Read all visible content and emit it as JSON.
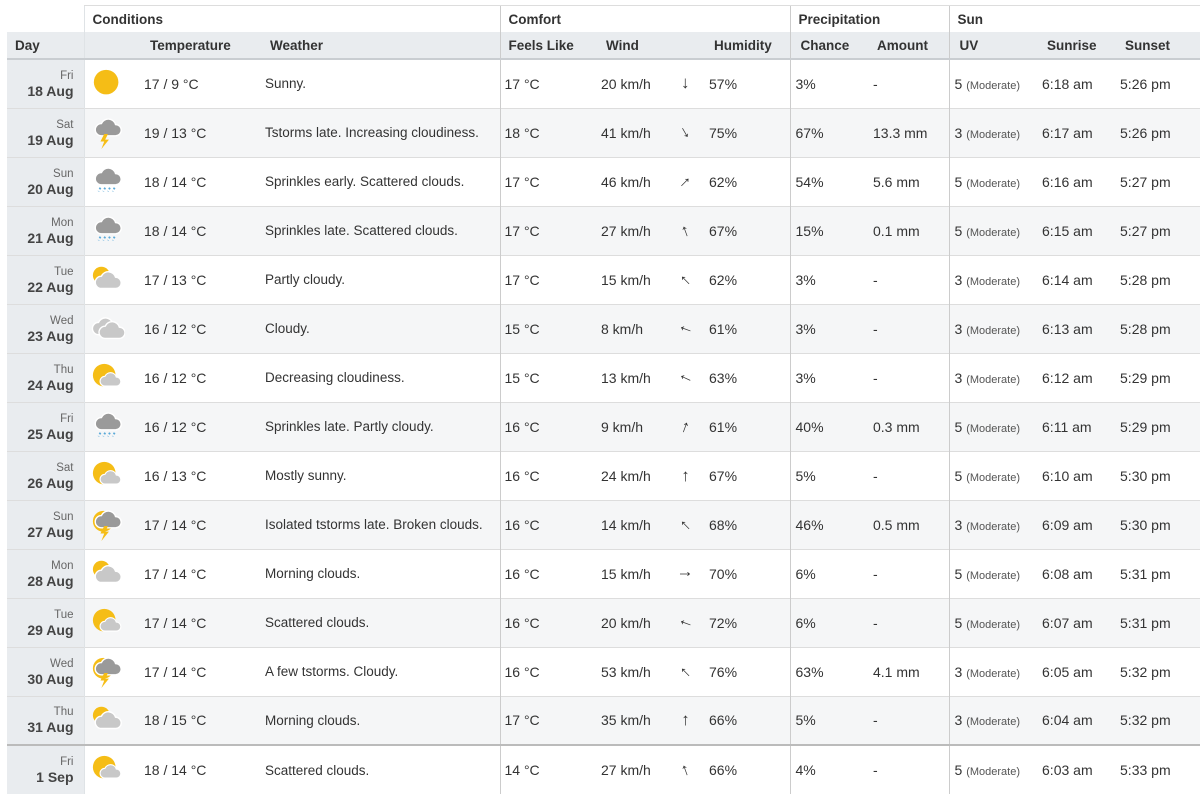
{
  "groups": {
    "conditions": "Conditions",
    "comfort": "Comfort",
    "precipitation": "Precipitation",
    "sun": "Sun"
  },
  "columns": {
    "day": "Day",
    "temperature": "Temperature",
    "weather": "Weather",
    "feels_like": "Feels Like",
    "wind": "Wind",
    "humidity": "Humidity",
    "chance": "Chance",
    "amount": "Amount",
    "uv": "UV",
    "sunrise": "Sunrise",
    "sunset": "Sunset"
  },
  "rows": [
    {
      "dow": "Fri",
      "date": "18 Aug",
      "icon": "sun-icon",
      "temp": "17 / 9 °C",
      "weather": "Sunny.",
      "feels": "17 °C",
      "wind": "20 km/h",
      "dir": 180,
      "humidity": "57%",
      "chance": "3%",
      "amount": "-",
      "uv": "5",
      "uv_label": "(Moderate)",
      "sunrise": "6:18 am",
      "sunset": "5:26 pm"
    },
    {
      "dow": "Sat",
      "date": "19 Aug",
      "icon": "tstorm-cloud-icon",
      "temp": "19 / 13 °C",
      "weather": "Tstorms late. Increasing cloudiness.",
      "feels": "18 °C",
      "wind": "41 km/h",
      "dir": 150,
      "humidity": "75%",
      "chance": "67%",
      "amount": "13.3 mm",
      "uv": "3",
      "uv_label": "(Moderate)",
      "sunrise": "6:17 am",
      "sunset": "5:26 pm"
    },
    {
      "dow": "Sun",
      "date": "20 Aug",
      "icon": "rain-cloud-icon",
      "temp": "18 / 14 °C",
      "weather": "Sprinkles early. Scattered clouds.",
      "feels": "17 °C",
      "wind": "46 km/h",
      "dir": 45,
      "humidity": "62%",
      "chance": "54%",
      "amount": "5.6 mm",
      "uv": "5",
      "uv_label": "(Moderate)",
      "sunrise": "6:16 am",
      "sunset": "5:27 pm"
    },
    {
      "dow": "Mon",
      "date": "21 Aug",
      "icon": "rain-cloud-icon",
      "temp": "18 / 14 °C",
      "weather": "Sprinkles late. Scattered clouds.",
      "feels": "17 °C",
      "wind": "27 km/h",
      "dir": -20,
      "humidity": "67%",
      "chance": "15%",
      "amount": "0.1 mm",
      "uv": "5",
      "uv_label": "(Moderate)",
      "sunrise": "6:15 am",
      "sunset": "5:27 pm"
    },
    {
      "dow": "Tue",
      "date": "22 Aug",
      "icon": "partly-cloudy-icon",
      "temp": "17 / 13 °C",
      "weather": "Partly cloudy.",
      "feels": "17 °C",
      "wind": "15 km/h",
      "dir": -45,
      "humidity": "62%",
      "chance": "3%",
      "amount": "-",
      "uv": "3",
      "uv_label": "(Moderate)",
      "sunrise": "6:14 am",
      "sunset": "5:28 pm"
    },
    {
      "dow": "Wed",
      "date": "23 Aug",
      "icon": "cloudy-icon",
      "temp": "16 / 12 °C",
      "weather": "Cloudy.",
      "feels": "15 °C",
      "wind": "8 km/h",
      "dir": -70,
      "humidity": "61%",
      "chance": "3%",
      "amount": "-",
      "uv": "3",
      "uv_label": "(Moderate)",
      "sunrise": "6:13 am",
      "sunset": "5:28 pm"
    },
    {
      "dow": "Thu",
      "date": "24 Aug",
      "icon": "mostly-sunny-icon",
      "temp": "16 / 12 °C",
      "weather": "Decreasing cloudiness.",
      "feels": "15 °C",
      "wind": "13 km/h",
      "dir": -65,
      "humidity": "63%",
      "chance": "3%",
      "amount": "-",
      "uv": "3",
      "uv_label": "(Moderate)",
      "sunrise": "6:12 am",
      "sunset": "5:29 pm"
    },
    {
      "dow": "Fri",
      "date": "25 Aug",
      "icon": "rain-cloud-icon",
      "temp": "16 / 12 °C",
      "weather": "Sprinkles late. Partly cloudy.",
      "feels": "16 °C",
      "wind": "9 km/h",
      "dir": 20,
      "humidity": "61%",
      "chance": "40%",
      "amount": "0.3 mm",
      "uv": "5",
      "uv_label": "(Moderate)",
      "sunrise": "6:11 am",
      "sunset": "5:29 pm"
    },
    {
      "dow": "Sat",
      "date": "26 Aug",
      "icon": "mostly-sunny-icon",
      "temp": "16 / 13 °C",
      "weather": "Mostly sunny.",
      "feels": "16 °C",
      "wind": "24 km/h",
      "dir": 0,
      "humidity": "67%",
      "chance": "5%",
      "amount": "-",
      "uv": "5",
      "uv_label": "(Moderate)",
      "sunrise": "6:10 am",
      "sunset": "5:30 pm"
    },
    {
      "dow": "Sun",
      "date": "27 Aug",
      "icon": "tstorm-sun-icon",
      "temp": "17 / 14 °C",
      "weather": "Isolated tstorms late. Broken clouds.",
      "feels": "16 °C",
      "wind": "14 km/h",
      "dir": -45,
      "humidity": "68%",
      "chance": "46%",
      "amount": "0.5 mm",
      "uv": "3",
      "uv_label": "(Moderate)",
      "sunrise": "6:09 am",
      "sunset": "5:30 pm"
    },
    {
      "dow": "Mon",
      "date": "28 Aug",
      "icon": "partly-cloudy-icon",
      "temp": "17 / 14 °C",
      "weather": "Morning clouds.",
      "feels": "16 °C",
      "wind": "15 km/h",
      "dir": 90,
      "humidity": "70%",
      "chance": "6%",
      "amount": "-",
      "uv": "5",
      "uv_label": "(Moderate)",
      "sunrise": "6:08 am",
      "sunset": "5:31 pm"
    },
    {
      "dow": "Tue",
      "date": "29 Aug",
      "icon": "mostly-sunny-icon",
      "temp": "17 / 14 °C",
      "weather": "Scattered clouds.",
      "feels": "16 °C",
      "wind": "20 km/h",
      "dir": -70,
      "humidity": "72%",
      "chance": "6%",
      "amount": "-",
      "uv": "5",
      "uv_label": "(Moderate)",
      "sunrise": "6:07 am",
      "sunset": "5:31 pm"
    },
    {
      "dow": "Wed",
      "date": "30 Aug",
      "icon": "tstorm-sun-icon",
      "temp": "17 / 14 °C",
      "weather": "A few tstorms. Cloudy.",
      "feels": "16 °C",
      "wind": "53 km/h",
      "dir": -45,
      "humidity": "76%",
      "chance": "63%",
      "amount": "4.1 mm",
      "uv": "3",
      "uv_label": "(Moderate)",
      "sunrise": "6:05 am",
      "sunset": "5:32 pm"
    },
    {
      "dow": "Thu",
      "date": "31 Aug",
      "icon": "partly-cloudy-icon",
      "temp": "18 / 15 °C",
      "weather": "Morning clouds.",
      "feels": "17 °C",
      "wind": "35 km/h",
      "dir": 0,
      "humidity": "66%",
      "chance": "5%",
      "amount": "-",
      "uv": "3",
      "uv_label": "(Moderate)",
      "sunrise": "6:04 am",
      "sunset": "5:32 pm"
    },
    {
      "dow": "Fri",
      "date": "1 Sep",
      "icon": "mostly-sunny-icon",
      "temp": "18 / 14 °C",
      "weather": "Scattered clouds.",
      "feels": "14 °C",
      "wind": "27 km/h",
      "dir": -20,
      "humidity": "66%",
      "chance": "4%",
      "amount": "-",
      "uv": "5",
      "uv_label": "(Moderate)",
      "sunrise": "6:03 am",
      "sunset": "5:33 pm"
    }
  ]
}
